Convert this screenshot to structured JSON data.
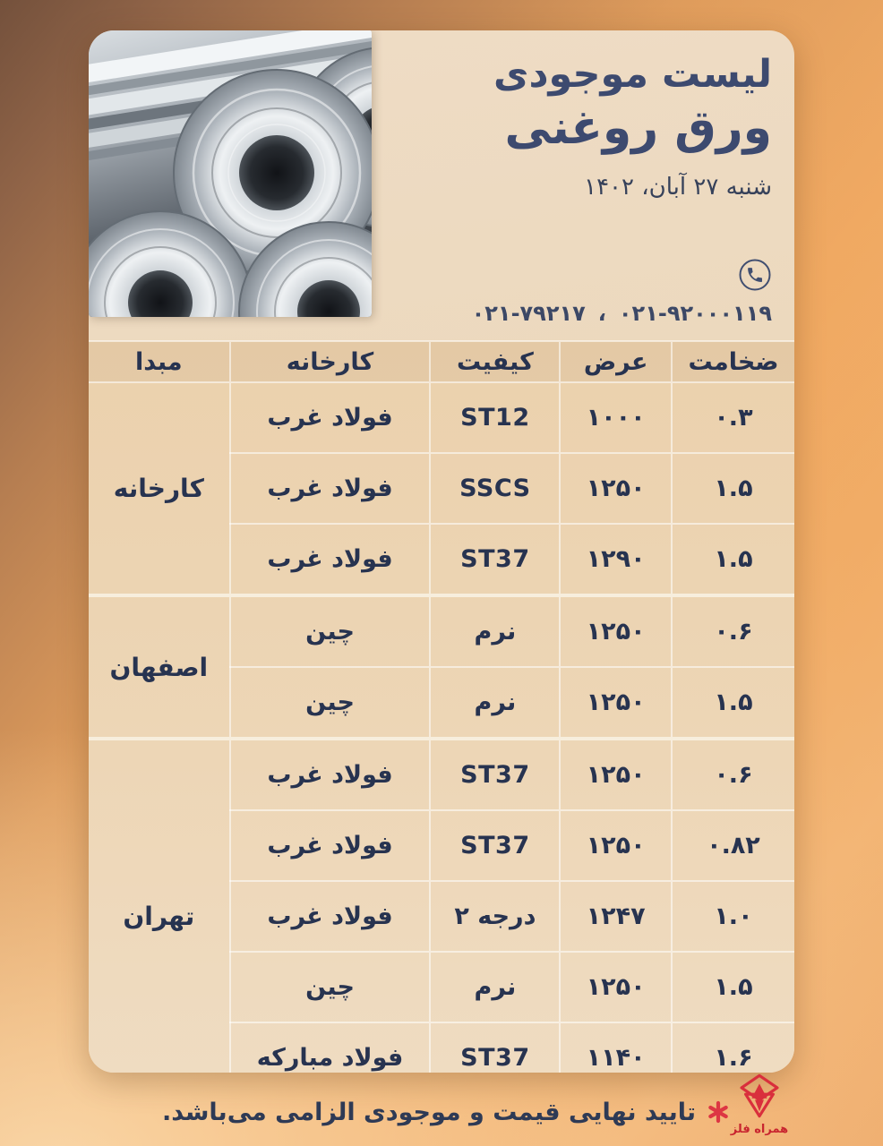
{
  "header": {
    "title_line1": "لیست موجودی",
    "title_line2": "ورق روغنی",
    "date": "شنبه ۲۷ آبان، ۱۴۰۲",
    "phones": [
      "۰۲۱-۹۲۰۰۰۱۱۹",
      "۰۲۱-۷۹۲۱۷"
    ],
    "phone_separator": "،"
  },
  "table": {
    "headers": [
      "ضخامت",
      "عرض",
      "کیفیت",
      "کارخانه",
      "مبدا"
    ],
    "groups": [
      {
        "origin": "کارخانه",
        "rows": [
          [
            "۰.۳",
            "۱۰۰۰",
            "ST12",
            "فولاد غرب"
          ],
          [
            "۱.۵",
            "۱۲۵۰",
            "SSCS",
            "فولاد غرب"
          ],
          [
            "۱.۵",
            "۱۲۹۰",
            "ST37",
            "فولاد غرب"
          ]
        ]
      },
      {
        "origin": "اصفهان",
        "rows": [
          [
            "۰.۶",
            "۱۲۵۰",
            "نرم",
            "چین"
          ],
          [
            "۱.۵",
            "۱۲۵۰",
            "نرم",
            "چین"
          ]
        ]
      },
      {
        "origin": "تهران",
        "rows": [
          [
            "۰.۶",
            "۱۲۵۰",
            "ST37",
            "فولاد غرب"
          ],
          [
            "۰.۸۲",
            "۱۲۵۰",
            "ST37",
            "فولاد غرب"
          ],
          [
            "۱.۰",
            "۱۲۴۷",
            "درجه ۲",
            "فولاد غرب"
          ],
          [
            "۱.۵",
            "۱۲۵۰",
            "نرم",
            "چین"
          ],
          [
            "۱.۶",
            "۱۱۴۰",
            "ST37",
            "فولاد مبارکه"
          ]
        ]
      }
    ]
  },
  "footer": {
    "note": "تایید نهایی قیمت و موجودی الزامی می‌باشد.",
    "brand_name": "همراه فلز"
  },
  "colors": {
    "title_navy": "#3d4a6f",
    "table_text": "#273350",
    "logo_red": "#d92f3c",
    "card_beige": "#edd9bf",
    "background_orange": "#f0ab66"
  },
  "photo_alt": "steel-coils"
}
